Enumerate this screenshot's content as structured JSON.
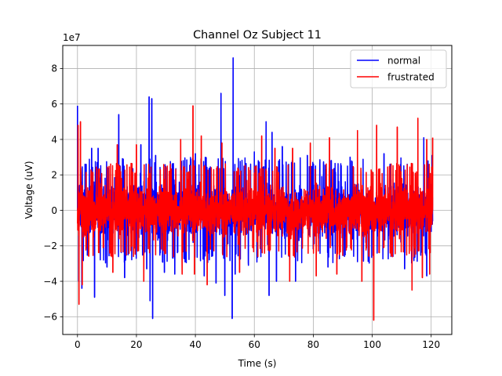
{
  "chart_data": {
    "type": "line",
    "title": "Channel Oz Subject 11",
    "xlabel": "Time (s)",
    "ylabel": "Voltage (uV)",
    "y_scale_label": "1e7",
    "xlim": [
      -5,
      127
    ],
    "ylim": [
      -7.0,
      9.3
    ],
    "x_ticks": [
      0,
      20,
      40,
      60,
      80,
      100,
      120
    ],
    "y_ticks": [
      -6,
      -4,
      -2,
      0,
      2,
      4,
      6,
      8
    ],
    "grid": true,
    "legend_position": "top-right",
    "series": [
      {
        "name": "normal",
        "color": "#0000ff",
        "x_range": [
          0,
          120.5
        ],
        "typical_band": [
          -2.6,
          2.6
        ],
        "spikes": [
          {
            "x": 0.0,
            "y": 5.9
          },
          {
            "x": 0.4,
            "y": -4.0
          },
          {
            "x": 1.5,
            "y": -4.4
          },
          {
            "x": 4.8,
            "y": 3.5
          },
          {
            "x": 5.8,
            "y": -4.9
          },
          {
            "x": 7.0,
            "y": 3.5
          },
          {
            "x": 10.0,
            "y": -3.2
          },
          {
            "x": 14.0,
            "y": 5.4
          },
          {
            "x": 16.0,
            "y": -3.8
          },
          {
            "x": 21.5,
            "y": 3.7
          },
          {
            "x": 23.5,
            "y": -3.3
          },
          {
            "x": 24.3,
            "y": 6.4
          },
          {
            "x": 24.6,
            "y": -5.1
          },
          {
            "x": 25.2,
            "y": 6.3
          },
          {
            "x": 25.5,
            "y": -6.1
          },
          {
            "x": 26.5,
            "y": 3.1
          },
          {
            "x": 29.5,
            "y": -3.5
          },
          {
            "x": 33.0,
            "y": -3.6
          },
          {
            "x": 40.0,
            "y": 3.2
          },
          {
            "x": 43.0,
            "y": -3.7
          },
          {
            "x": 47.0,
            "y": -4.1
          },
          {
            "x": 48.7,
            "y": 6.6
          },
          {
            "x": 50.0,
            "y": -4.8
          },
          {
            "x": 52.5,
            "y": -6.1
          },
          {
            "x": 52.8,
            "y": 8.6
          },
          {
            "x": 53.5,
            "y": -3.6
          },
          {
            "x": 58.0,
            "y": -3.1
          },
          {
            "x": 60.0,
            "y": 3.3
          },
          {
            "x": 64.0,
            "y": 5.0
          },
          {
            "x": 65.0,
            "y": -4.8
          },
          {
            "x": 66.0,
            "y": 4.4
          },
          {
            "x": 67.5,
            "y": -4.0
          },
          {
            "x": 69.5,
            "y": 3.6
          },
          {
            "x": 74.0,
            "y": -4.0
          },
          {
            "x": 78.0,
            "y": 3.1
          },
          {
            "x": 85.0,
            "y": -3.2
          },
          {
            "x": 92.5,
            "y": 3.0
          },
          {
            "x": 95.0,
            "y": -2.9
          },
          {
            "x": 104.0,
            "y": 3.2
          },
          {
            "x": 111.0,
            "y": -3.3
          },
          {
            "x": 117.5,
            "y": 4.1
          },
          {
            "x": 118.5,
            "y": -3.7
          },
          {
            "x": 120.3,
            "y": 3.1
          }
        ]
      },
      {
        "name": "frustrated",
        "color": "#ff0000",
        "x_range": [
          0,
          120.5
        ],
        "typical_band": [
          -2.3,
          2.3
        ],
        "spikes": [
          {
            "x": 0.2,
            "y": 4.8
          },
          {
            "x": 0.5,
            "y": -5.3
          },
          {
            "x": 1.0,
            "y": 5.0
          },
          {
            "x": 1.6,
            "y": -4.2
          },
          {
            "x": 12.0,
            "y": -3.5
          },
          {
            "x": 13.5,
            "y": 3.7
          },
          {
            "x": 20.0,
            "y": 3.7
          },
          {
            "x": 22.5,
            "y": -4.0
          },
          {
            "x": 35.0,
            "y": 4.0
          },
          {
            "x": 35.5,
            "y": -3.6
          },
          {
            "x": 39.2,
            "y": 5.9
          },
          {
            "x": 39.7,
            "y": -3.6
          },
          {
            "x": 42.0,
            "y": 4.2
          },
          {
            "x": 44.0,
            "y": -4.2
          },
          {
            "x": 49.0,
            "y": 3.8
          },
          {
            "x": 55.0,
            "y": -3.5
          },
          {
            "x": 62.5,
            "y": 4.2
          },
          {
            "x": 67.0,
            "y": 3.5
          },
          {
            "x": 72.0,
            "y": -4.0
          },
          {
            "x": 73.0,
            "y": 3.5
          },
          {
            "x": 79.0,
            "y": 3.8
          },
          {
            "x": 81.0,
            "y": -3.7
          },
          {
            "x": 85.5,
            "y": 4.1
          },
          {
            "x": 88.0,
            "y": -3.6
          },
          {
            "x": 95.0,
            "y": 4.5
          },
          {
            "x": 96.5,
            "y": -4.0
          },
          {
            "x": 100.5,
            "y": -6.2
          },
          {
            "x": 101.5,
            "y": 4.8
          },
          {
            "x": 108.5,
            "y": 4.7
          },
          {
            "x": 113.5,
            "y": -4.5
          },
          {
            "x": 115.5,
            "y": 5.2
          },
          {
            "x": 117.0,
            "y": -3.8
          },
          {
            "x": 118.5,
            "y": 4.0
          },
          {
            "x": 119.5,
            "y": -3.6
          },
          {
            "x": 120.5,
            "y": 4.1
          }
        ]
      }
    ]
  }
}
